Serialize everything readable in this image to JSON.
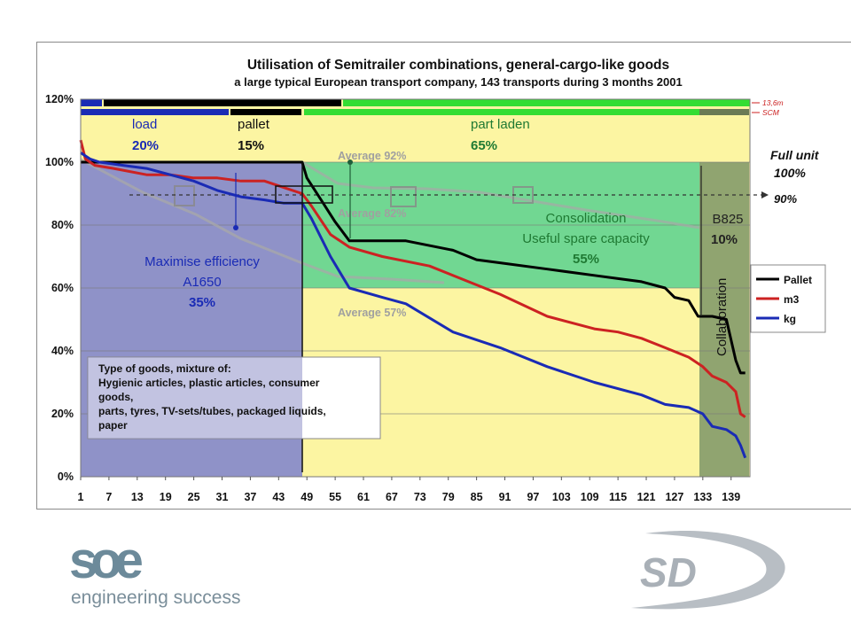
{
  "chart_data": {
    "type": "line",
    "title": "Utilisation of Semitrailer combinations, general-cargo-like goods",
    "subtitle": "a large typical European transport company, 143 transports during 3 months 2001",
    "x_ticks": [
      "1",
      "7",
      "13",
      "19",
      "25",
      "31",
      "37",
      "43",
      "49",
      "55",
      "61",
      "67",
      "73",
      "79",
      "85",
      "91",
      "97",
      "103",
      "109",
      "115",
      "121",
      "127",
      "133",
      "139"
    ],
    "y_ticks": [
      "0%",
      "20%",
      "40%",
      "60%",
      "80%",
      "100%",
      "120%"
    ],
    "ylim": [
      0,
      120
    ],
    "xlim": [
      1,
      143
    ],
    "grid": true,
    "legend": {
      "position": "right",
      "entries": [
        "Pallet",
        "m3",
        "kg"
      ]
    },
    "series": [
      {
        "name": "Pallet",
        "color": "#000000",
        "x": [
          1,
          2,
          4,
          6,
          10,
          20,
          30,
          40,
          48,
          49,
          52,
          55,
          58,
          61,
          70,
          80,
          85,
          90,
          100,
          110,
          115,
          120,
          125,
          127,
          130,
          132,
          133,
          135,
          138,
          140,
          141,
          142
        ],
        "y": [
          100,
          100,
          100,
          100,
          100,
          100,
          100,
          100,
          100,
          95,
          88,
          81,
          75,
          75,
          75,
          72,
          69,
          68,
          66,
          64,
          63,
          62,
          60,
          57,
          56,
          51,
          51,
          51,
          50,
          37,
          33,
          33
        ]
      },
      {
        "name": "m3",
        "color": "#cc2222",
        "x": [
          1,
          2,
          4,
          8,
          15,
          20,
          25,
          30,
          35,
          40,
          44,
          48,
          50,
          54,
          58,
          65,
          75,
          85,
          90,
          100,
          110,
          115,
          120,
          125,
          130,
          133,
          135,
          138,
          140,
          141,
          142
        ],
        "y": [
          107,
          101,
          99,
          98,
          96,
          96,
          95,
          95,
          94,
          94,
          92,
          90,
          86,
          77,
          73,
          70,
          67,
          61,
          58,
          51,
          47,
          46,
          44,
          41,
          38,
          35,
          32,
          30,
          27,
          20,
          19
        ]
      },
      {
        "name": "kg",
        "color": "#1a2bb5",
        "x": [
          1,
          2,
          3,
          5,
          10,
          15,
          20,
          25,
          30,
          35,
          40,
          44,
          48,
          50,
          54,
          58,
          65,
          70,
          80,
          90,
          100,
          110,
          120,
          125,
          130,
          133,
          135,
          138,
          140,
          141,
          142
        ],
        "y": [
          103,
          102,
          101,
          100,
          99,
          98,
          96,
          94,
          91,
          89,
          88,
          87,
          87,
          82,
          70,
          60,
          57,
          55,
          46,
          41,
          35,
          30,
          26,
          23,
          22,
          20,
          16,
          15,
          13,
          10,
          6
        ]
      }
    ],
    "annotations": {
      "avg_92": "Average 92%",
      "avg_82": "Average 82%",
      "avg_57": "Average 57%",
      "full_unit_line1": "Full unit",
      "full_unit_line2": "100%",
      "target": "90%",
      "top_bar_label": "13,6m",
      "scm_label": "SCM",
      "seg1_label": "load",
      "seg1_value": "20%",
      "seg2_label": "pallet",
      "seg2_value": "15%",
      "seg3_label": "part laden",
      "seg3_value": "65%",
      "max_eff_line1": "Maximise efficiency",
      "max_eff_line2": "A1650",
      "max_eff_line3": "35%",
      "consol_line1": "Consolidation",
      "consol_line2": "Useful spare capacity",
      "consol_line3": "55%",
      "b825_line1": "B825",
      "b825_line2": "10%",
      "collab": "Collaboration",
      "goods_line1": "Type of goods, mixture of:",
      "goods_line2": "Hygienic articles, plastic articles, consumer",
      "goods_line3": "goods,",
      "goods_line4": "parts, tyres, TV-sets/tubes, packaged liquids,",
      "goods_line5": "paper"
    }
  },
  "logos": {
    "soe_text": "soe",
    "soe_tagline": "engineering success",
    "sd_text": "SD"
  },
  "colors": {
    "plot_bg": "#fcf5a2",
    "zone_blue": "#8f92c8",
    "zone_green": "#4ecf8f",
    "zone_collab": "#8a9f6e",
    "title": "#111111",
    "label_blue": "#1a2bb5",
    "label_green": "#1f7a33",
    "label_red": "#cc2222"
  }
}
